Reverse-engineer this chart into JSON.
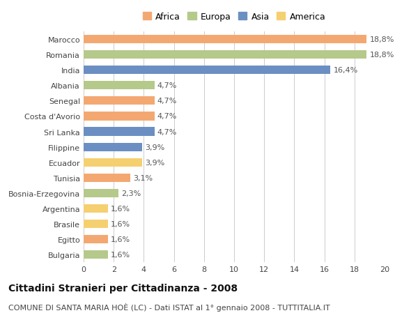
{
  "countries": [
    "Marocco",
    "Romania",
    "India",
    "Albania",
    "Senegal",
    "Costa d'Avorio",
    "Sri Lanka",
    "Filippine",
    "Ecuador",
    "Tunisia",
    "Bosnia-Erzegovina",
    "Argentina",
    "Brasile",
    "Egitto",
    "Bulgaria"
  ],
  "values": [
    18.8,
    18.8,
    16.4,
    4.7,
    4.7,
    4.7,
    4.7,
    3.9,
    3.9,
    3.1,
    2.3,
    1.6,
    1.6,
    1.6,
    1.6
  ],
  "labels": [
    "18,8%",
    "18,8%",
    "16,4%",
    "4,7%",
    "4,7%",
    "4,7%",
    "4,7%",
    "3,9%",
    "3,9%",
    "3,1%",
    "2,3%",
    "1,6%",
    "1,6%",
    "1,6%",
    "1,6%"
  ],
  "continents": [
    "Africa",
    "Europa",
    "Asia",
    "Europa",
    "Africa",
    "Africa",
    "Asia",
    "Asia",
    "America",
    "Africa",
    "Europa",
    "America",
    "America",
    "Africa",
    "Europa"
  ],
  "continent_colors": {
    "Africa": "#F4A871",
    "Europa": "#B5C98A",
    "Asia": "#6B8FC2",
    "America": "#F5D070"
  },
  "legend_order": [
    "Africa",
    "Europa",
    "Asia",
    "America"
  ],
  "xlim": [
    0,
    20
  ],
  "xticks": [
    0,
    2,
    4,
    6,
    8,
    10,
    12,
    14,
    16,
    18,
    20
  ],
  "title": "Cittadini Stranieri per Cittadinanza - 2008",
  "subtitle": "COMUNE DI SANTA MARIA HOÈ (LC) - Dati ISTAT al 1° gennaio 2008 - TUTTITALIA.IT",
  "bg_color": "#ffffff",
  "grid_color": "#cccccc",
  "bar_height": 0.55,
  "title_fontsize": 10,
  "subtitle_fontsize": 8,
  "label_fontsize": 8,
  "tick_fontsize": 8,
  "legend_fontsize": 9
}
